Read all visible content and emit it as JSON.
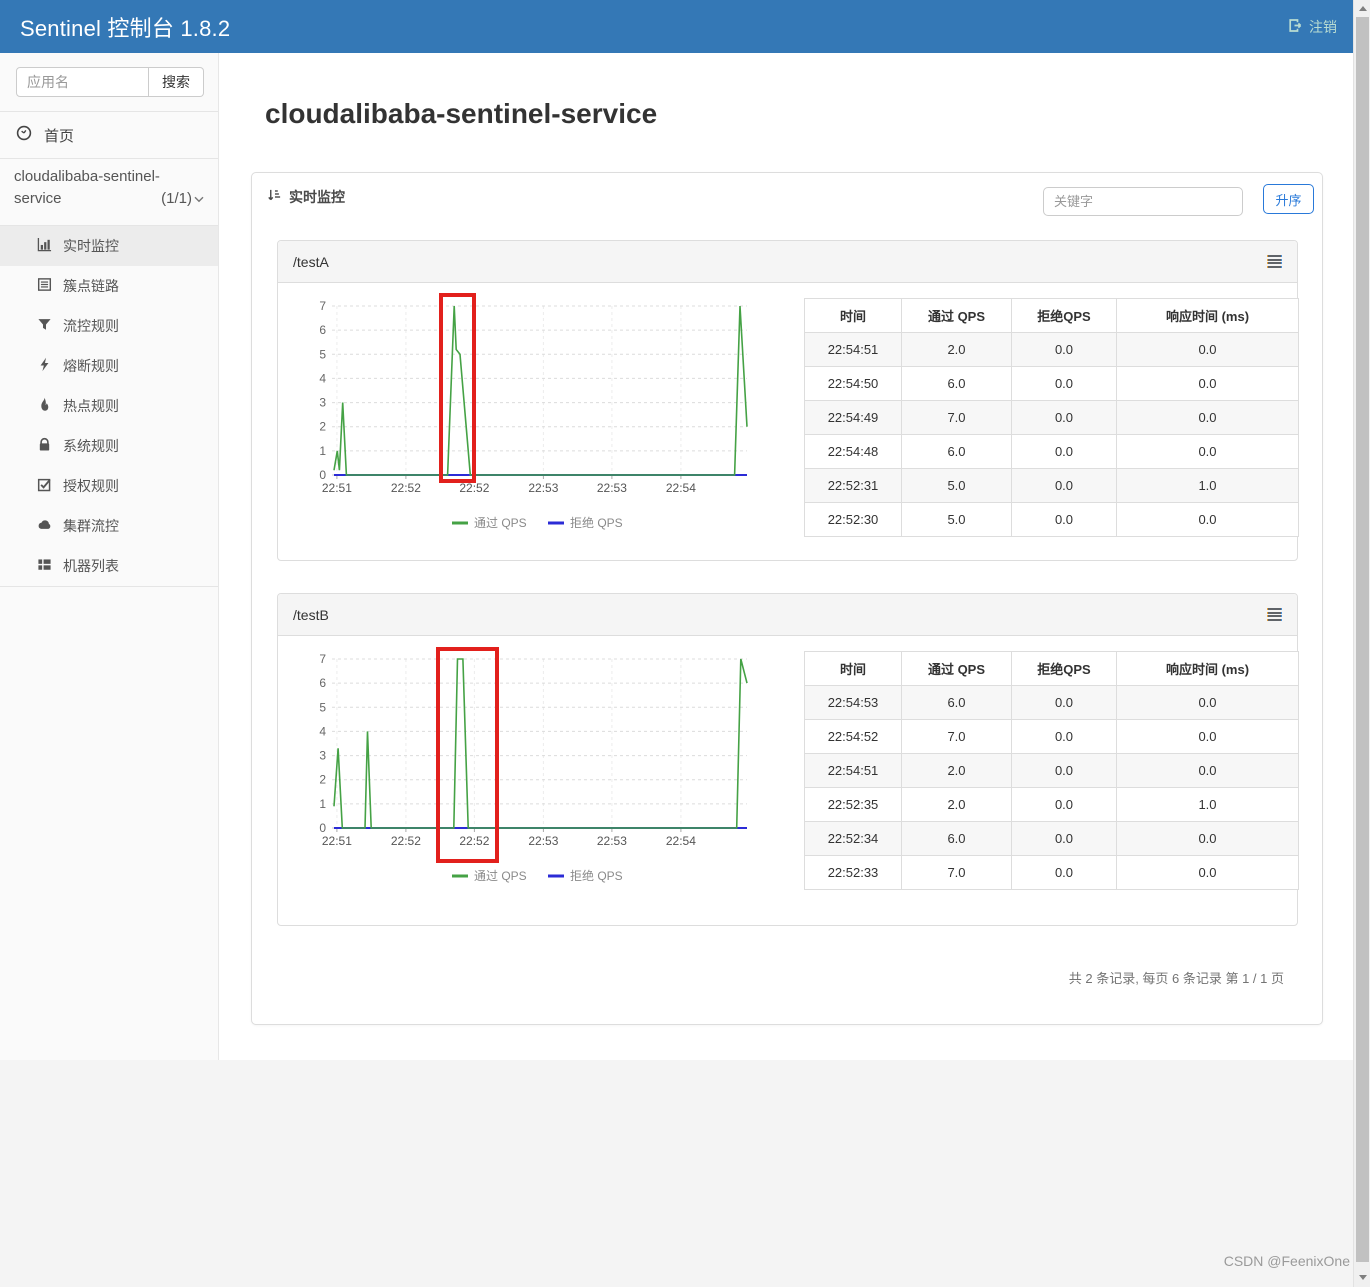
{
  "header": {
    "title": "Sentinel 控制台 1.8.2",
    "logout_label": "注销"
  },
  "sidebar": {
    "search_placeholder": "应用名",
    "search_button": "搜索",
    "home_label": "首页",
    "app": {
      "name_line1": "cloudalibaba-sentinel-",
      "name_line2": "service",
      "count": "(1/1)"
    },
    "items": [
      {
        "label": "实时监控",
        "icon": "bar-chart-icon",
        "active": true
      },
      {
        "label": "簇点链路",
        "icon": "list-icon",
        "active": false
      },
      {
        "label": "流控规则",
        "icon": "filter-icon",
        "active": false
      },
      {
        "label": "熔断规则",
        "icon": "bolt-icon",
        "active": false
      },
      {
        "label": "热点规则",
        "icon": "fire-icon",
        "active": false
      },
      {
        "label": "系统规则",
        "icon": "lock-icon",
        "active": false
      },
      {
        "label": "授权规则",
        "icon": "check-square-icon",
        "active": false
      },
      {
        "label": "集群流控",
        "icon": "cloud-icon",
        "active": false
      },
      {
        "label": "机器列表",
        "icon": "th-list-icon",
        "active": false
      }
    ]
  },
  "main": {
    "page_title": "cloudalibaba-sentinel-service",
    "card_title": "实时监控",
    "keyword_placeholder": "关键字",
    "sort_button": "升序",
    "pagination": "共 2 条记录, 每页 6 条记录 第 1 / 1 页"
  },
  "watermark": "CSDN @FeenixOne",
  "icons": [
    "gauge-icon",
    "bar-chart-icon",
    "list-icon",
    "filter-icon",
    "bolt-icon",
    "fire-icon",
    "lock-icon",
    "check-square-icon",
    "cloud-icon",
    "th-list-icon",
    "sort-desc-icon",
    "logout-icon",
    "chevron-down-icon",
    "menu-lines-icon"
  ],
  "colors": {
    "header_bg": "#3478b6",
    "accent_blue": "#2979d9",
    "pass_qps_green": "#45a245",
    "reject_qps_blue": "#2b2bd6",
    "annotation_red": "#e2201c",
    "panel_header_bg": "#f5f5f5"
  },
  "chart_data": [
    {
      "type": "line",
      "title": "/testA",
      "ylim": [
        0,
        7
      ],
      "yticks": [
        0,
        1,
        2,
        3,
        4,
        5,
        6,
        7
      ],
      "xticks": [
        "22:51",
        "22:52",
        "22:52",
        "22:53",
        "22:53",
        "22:54"
      ],
      "grid": true,
      "legend_position": "bottom",
      "series": [
        {
          "name": "通过 QPS",
          "color": "#45a245",
          "points": [
            [
              0,
              0.2
            ],
            [
              0.008,
              1
            ],
            [
              0.013,
              0.2
            ],
            [
              0.021,
              3
            ],
            [
              0.03,
              0
            ],
            [
              0.275,
              0
            ],
            [
              0.291,
              7
            ],
            [
              0.296,
              5.2
            ],
            [
              0.305,
              5.0
            ],
            [
              0.33,
              0
            ],
            [
              0.97,
              0
            ],
            [
              0.983,
              7
            ],
            [
              1,
              2
            ]
          ]
        },
        {
          "name": "拒绝 QPS",
          "color": "#2b2bd6",
          "points": [
            [
              0,
              0
            ],
            [
              1,
              0
            ]
          ]
        }
      ],
      "annotation": "red box around 22:52 spike (peak 7)",
      "table": {
        "headers": [
          "时间",
          "通过 QPS",
          "拒绝QPS",
          "响应时间  (ms)"
        ],
        "rows": [
          [
            "22:54:51",
            "2.0",
            "0.0",
            "0.0"
          ],
          [
            "22:54:50",
            "6.0",
            "0.0",
            "0.0"
          ],
          [
            "22:54:49",
            "7.0",
            "0.0",
            "0.0"
          ],
          [
            "22:54:48",
            "6.0",
            "0.0",
            "0.0"
          ],
          [
            "22:52:31",
            "5.0",
            "0.0",
            "1.0"
          ],
          [
            "22:52:30",
            "5.0",
            "0.0",
            "0.0"
          ]
        ]
      }
    },
    {
      "type": "line",
      "title": "/testB",
      "ylim": [
        0,
        7
      ],
      "yticks": [
        0,
        1,
        2,
        3,
        4,
        5,
        6,
        7
      ],
      "xticks": [
        "22:51",
        "22:52",
        "22:52",
        "22:53",
        "22:53",
        "22:54"
      ],
      "grid": true,
      "legend_position": "bottom",
      "series": [
        {
          "name": "通过 QPS",
          "color": "#45a245",
          "points": [
            [
              0,
              0.9
            ],
            [
              0.01,
              3.3
            ],
            [
              0.02,
              0
            ],
            [
              0.075,
              0
            ],
            [
              0.081,
              4
            ],
            [
              0.09,
              0
            ],
            [
              0.29,
              0
            ],
            [
              0.299,
              7
            ],
            [
              0.312,
              7
            ],
            [
              0.325,
              0
            ],
            [
              0.975,
              0
            ],
            [
              0.985,
              7
            ],
            [
              1,
              6
            ]
          ]
        },
        {
          "name": "拒绝 QPS",
          "color": "#2b2bd6",
          "points": [
            [
              0,
              0
            ],
            [
              1,
              0
            ]
          ]
        }
      ],
      "annotation": "red box around 22:52 spike (peak 7)",
      "table": {
        "headers": [
          "时间",
          "通过 QPS",
          "拒绝QPS",
          "响应时间  (ms)"
        ],
        "rows": [
          [
            "22:54:53",
            "6.0",
            "0.0",
            "0.0"
          ],
          [
            "22:54:52",
            "7.0",
            "0.0",
            "0.0"
          ],
          [
            "22:54:51",
            "2.0",
            "0.0",
            "0.0"
          ],
          [
            "22:52:35",
            "2.0",
            "0.0",
            "1.0"
          ],
          [
            "22:52:34",
            "6.0",
            "0.0",
            "0.0"
          ],
          [
            "22:52:33",
            "7.0",
            "0.0",
            "0.0"
          ]
        ]
      }
    }
  ]
}
